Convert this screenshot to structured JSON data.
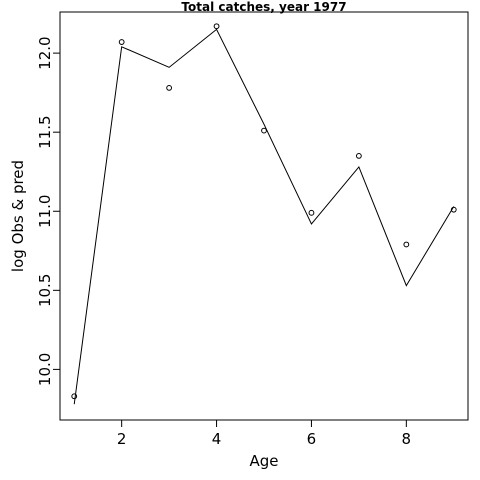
{
  "chart_data": {
    "type": "line",
    "title": "Total catches, year 1977",
    "xlabel": "Age",
    "ylabel": "log Obs & pred",
    "xlim": [
      0.7,
      9.3
    ],
    "ylim": [
      9.68,
      12.26
    ],
    "xticks": [
      2,
      4,
      6,
      8
    ],
    "yticks": [
      10.0,
      10.5,
      11.0,
      11.5,
      12.0
    ],
    "ytick_labels": [
      "10.0",
      "10.5",
      "11.0",
      "11.5",
      "12.0"
    ],
    "grid": false,
    "series": [
      {
        "kind": "points",
        "x": [
          1,
          2,
          3,
          4,
          5,
          6,
          7,
          8,
          9
        ],
        "y": [
          9.83,
          12.07,
          11.78,
          12.17,
          11.51,
          10.99,
          11.35,
          10.79,
          11.01
        ]
      },
      {
        "kind": "line",
        "x": [
          1,
          2,
          3,
          4,
          5,
          6,
          7,
          8,
          9
        ],
        "y": [
          9.78,
          12.04,
          11.91,
          12.15,
          11.55,
          10.92,
          11.28,
          10.53,
          11.03
        ]
      }
    ]
  }
}
